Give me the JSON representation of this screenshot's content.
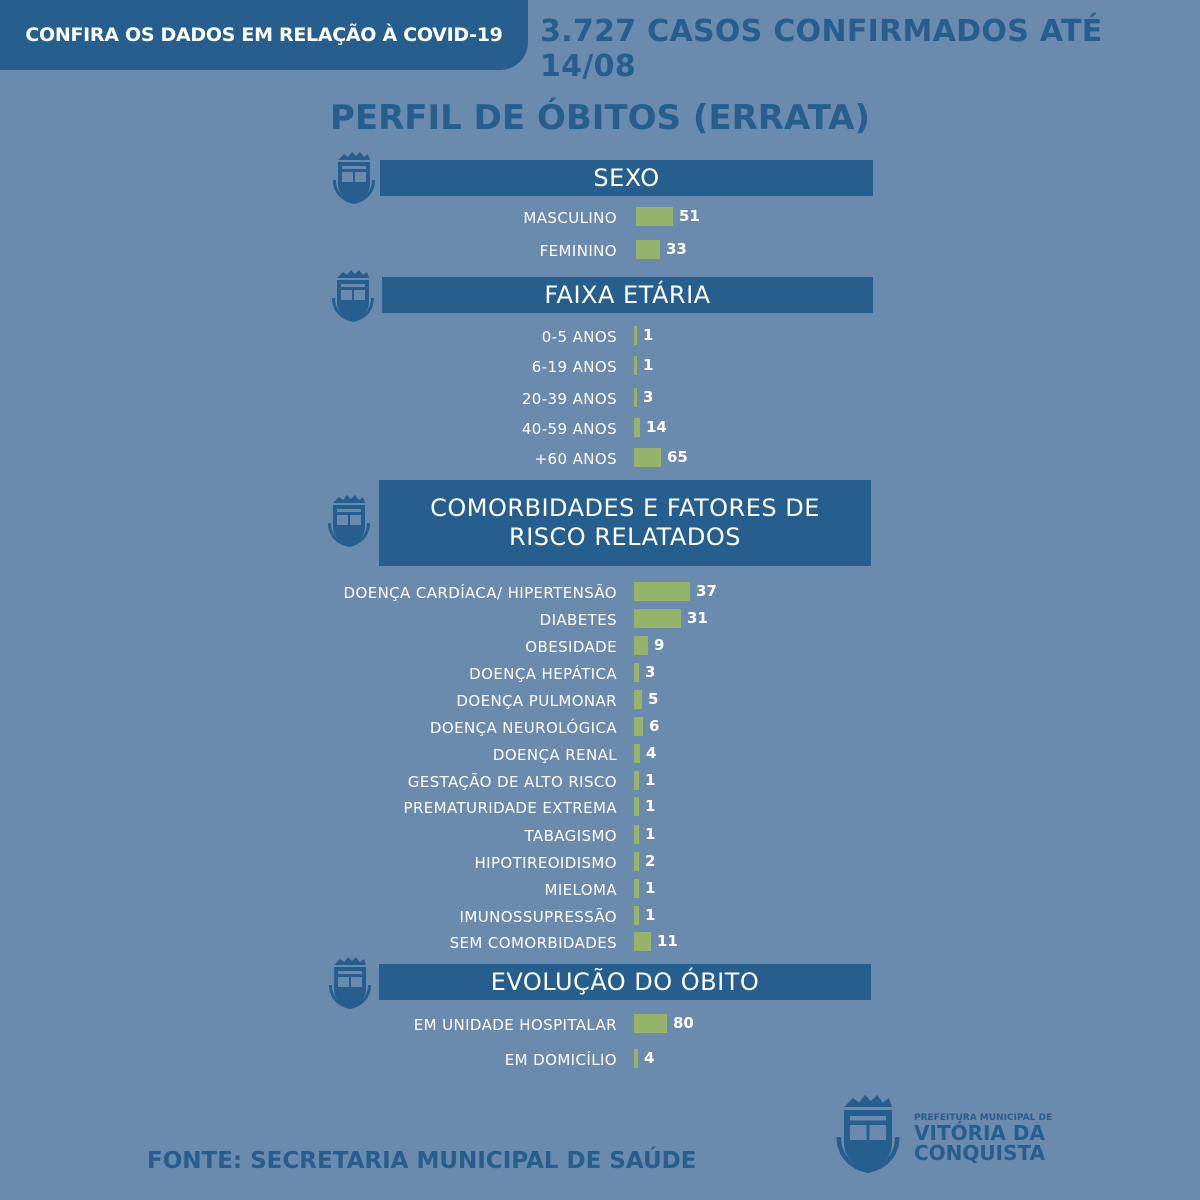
{
  "header": {
    "tab": "CONFIRA OS DADOS EM RELAÇÃO À COVID-19",
    "cases": "3.727 CASOS CONFIRMADOS ATÉ 14/08"
  },
  "title": "PERFIL DE ÓBITOS (ERRATA)",
  "colors": {
    "background": "#6a8aae",
    "primary": "#265e8e",
    "bar": "#94b46a"
  },
  "chart_data": [
    {
      "type": "bar",
      "title": "SEXO",
      "categories": [
        "MASCULINO",
        "FEMININO"
      ],
      "values": [
        51,
        33
      ]
    },
    {
      "type": "bar",
      "title": "FAIXA ETÁRIA",
      "categories": [
        "0-5 ANOS",
        "6-19 ANOS",
        "20-39 ANOS",
        "40-59 ANOS",
        "+60 ANOS"
      ],
      "values": [
        1,
        1,
        3,
        14,
        65
      ]
    },
    {
      "type": "bar",
      "title": "COMORBIDADES E FATORES DE RISCO RELATADOS",
      "categories": [
        "DOENÇA CARDÍACA/ HIPERTENSÃO",
        "DIABETES",
        "OBESIDADE",
        "DOENÇA HEPÁTICA",
        "DOENÇA PULMONAR",
        "DOENÇA NEUROLÓGICA",
        "DOENÇA RENAL",
        "GESTAÇÃO DE ALTO RISCO",
        "PREMATURIDADE EXTREMA",
        "TABAGISMO",
        "HIPOTIREOIDISMO",
        "MIELOMA",
        "IMUNOSSUPRESSÃO",
        "SEM COMORBIDADES"
      ],
      "values": [
        37,
        31,
        9,
        3,
        5,
        6,
        4,
        1,
        1,
        1,
        2,
        1,
        1,
        11
      ]
    },
    {
      "type": "bar",
      "title": "EVOLUÇÃO DO ÓBITO",
      "categories": [
        "EM UNIDADE HOSPITALAR",
        "EM DOMICÍLIO"
      ],
      "values": [
        80,
        4
      ]
    }
  ],
  "footer": {
    "source": "FONTE: SECRETARIA MUNICIPAL DE SAÚDE",
    "logo_line1": "PREFEITURA MUNICIPAL DE",
    "logo_line2": "VITÓRIA DA",
    "logo_line3": "CONQUISTA"
  }
}
